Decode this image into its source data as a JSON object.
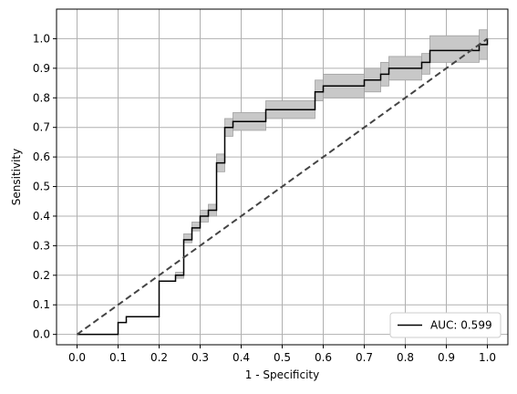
{
  "chart_data": {
    "type": "line",
    "title": "",
    "xlabel": "1 - Specificity",
    "ylabel": "Sensitivity",
    "xlim": [
      -0.05,
      1.05
    ],
    "ylim": [
      -0.035,
      1.1
    ],
    "x_ticks": [
      "0.0",
      "0.1",
      "0.2",
      "0.3",
      "0.4",
      "0.5",
      "0.6",
      "0.7",
      "0.8",
      "0.9",
      "1.0"
    ],
    "y_ticks": [
      "0.0",
      "0.1",
      "0.2",
      "0.3",
      "0.4",
      "0.5",
      "0.6",
      "0.7",
      "0.8",
      "0.9",
      "1.0"
    ],
    "grid": true,
    "legend_position": "lower-right",
    "colors": {
      "roc": "#000000",
      "band": "#c8c8c8",
      "band_edge": "#a0a0a0",
      "chance": "#444444",
      "grid": "#b0b0b0"
    },
    "series": [
      {
        "name": "AUC: 0.599",
        "style": "step",
        "x": [
          0.0,
          0.1,
          0.1,
          0.12,
          0.12,
          0.2,
          0.2,
          0.24,
          0.24,
          0.26,
          0.26,
          0.28,
          0.28,
          0.3,
          0.3,
          0.32,
          0.32,
          0.34,
          0.34,
          0.36,
          0.36,
          0.38,
          0.38,
          0.46,
          0.46,
          0.58,
          0.58,
          0.6,
          0.6,
          0.7,
          0.7,
          0.74,
          0.74,
          0.76,
          0.76,
          0.84,
          0.84,
          0.86,
          0.86,
          0.98,
          0.98,
          1.0,
          1.0
        ],
        "y": [
          0.0,
          0.0,
          0.04,
          0.04,
          0.06,
          0.06,
          0.18,
          0.18,
          0.2,
          0.2,
          0.32,
          0.32,
          0.36,
          0.36,
          0.4,
          0.4,
          0.42,
          0.42,
          0.58,
          0.58,
          0.7,
          0.7,
          0.72,
          0.72,
          0.76,
          0.76,
          0.82,
          0.82,
          0.84,
          0.84,
          0.86,
          0.86,
          0.88,
          0.88,
          0.9,
          0.9,
          0.92,
          0.92,
          0.96,
          0.96,
          0.98,
          0.98,
          1.0
        ]
      },
      {
        "name": "chance",
        "style": "dashed",
        "x": [
          0.0,
          1.0
        ],
        "y": [
          0.0,
          1.0
        ]
      }
    ],
    "confidence_band": [
      {
        "x": [
          0.24,
          0.26
        ],
        "y_low": 0.19,
        "y_high": 0.21
      },
      {
        "x": [
          0.26,
          0.28
        ],
        "y_low": 0.31,
        "y_high": 0.34
      },
      {
        "x": [
          0.28,
          0.3
        ],
        "y_low": 0.35,
        "y_high": 0.38
      },
      {
        "x": [
          0.3,
          0.32
        ],
        "y_low": 0.38,
        "y_high": 0.42
      },
      {
        "x": [
          0.32,
          0.34
        ],
        "y_low": 0.4,
        "y_high": 0.44
      },
      {
        "x": [
          0.34,
          0.36
        ],
        "y_low": 0.55,
        "y_high": 0.61
      },
      {
        "x": [
          0.36,
          0.38
        ],
        "y_low": 0.67,
        "y_high": 0.73
      },
      {
        "x": [
          0.38,
          0.46
        ],
        "y_low": 0.69,
        "y_high": 0.75
      },
      {
        "x": [
          0.46,
          0.58
        ],
        "y_low": 0.73,
        "y_high": 0.79
      },
      {
        "x": [
          0.58,
          0.6
        ],
        "y_low": 0.79,
        "y_high": 0.86
      },
      {
        "x": [
          0.6,
          0.7
        ],
        "y_low": 0.8,
        "y_high": 0.88
      },
      {
        "x": [
          0.7,
          0.74
        ],
        "y_low": 0.82,
        "y_high": 0.9
      },
      {
        "x": [
          0.74,
          0.76
        ],
        "y_low": 0.84,
        "y_high": 0.92
      },
      {
        "x": [
          0.76,
          0.84
        ],
        "y_low": 0.86,
        "y_high": 0.94
      },
      {
        "x": [
          0.84,
          0.86
        ],
        "y_low": 0.88,
        "y_high": 0.95
      },
      {
        "x": [
          0.86,
          0.98
        ],
        "y_low": 0.92,
        "y_high": 1.01
      },
      {
        "x": [
          0.98,
          1.0
        ],
        "y_low": 0.93,
        "y_high": 1.03
      }
    ],
    "legend": [
      {
        "label": "AUC: 0.599",
        "color": "#000000"
      }
    ]
  }
}
